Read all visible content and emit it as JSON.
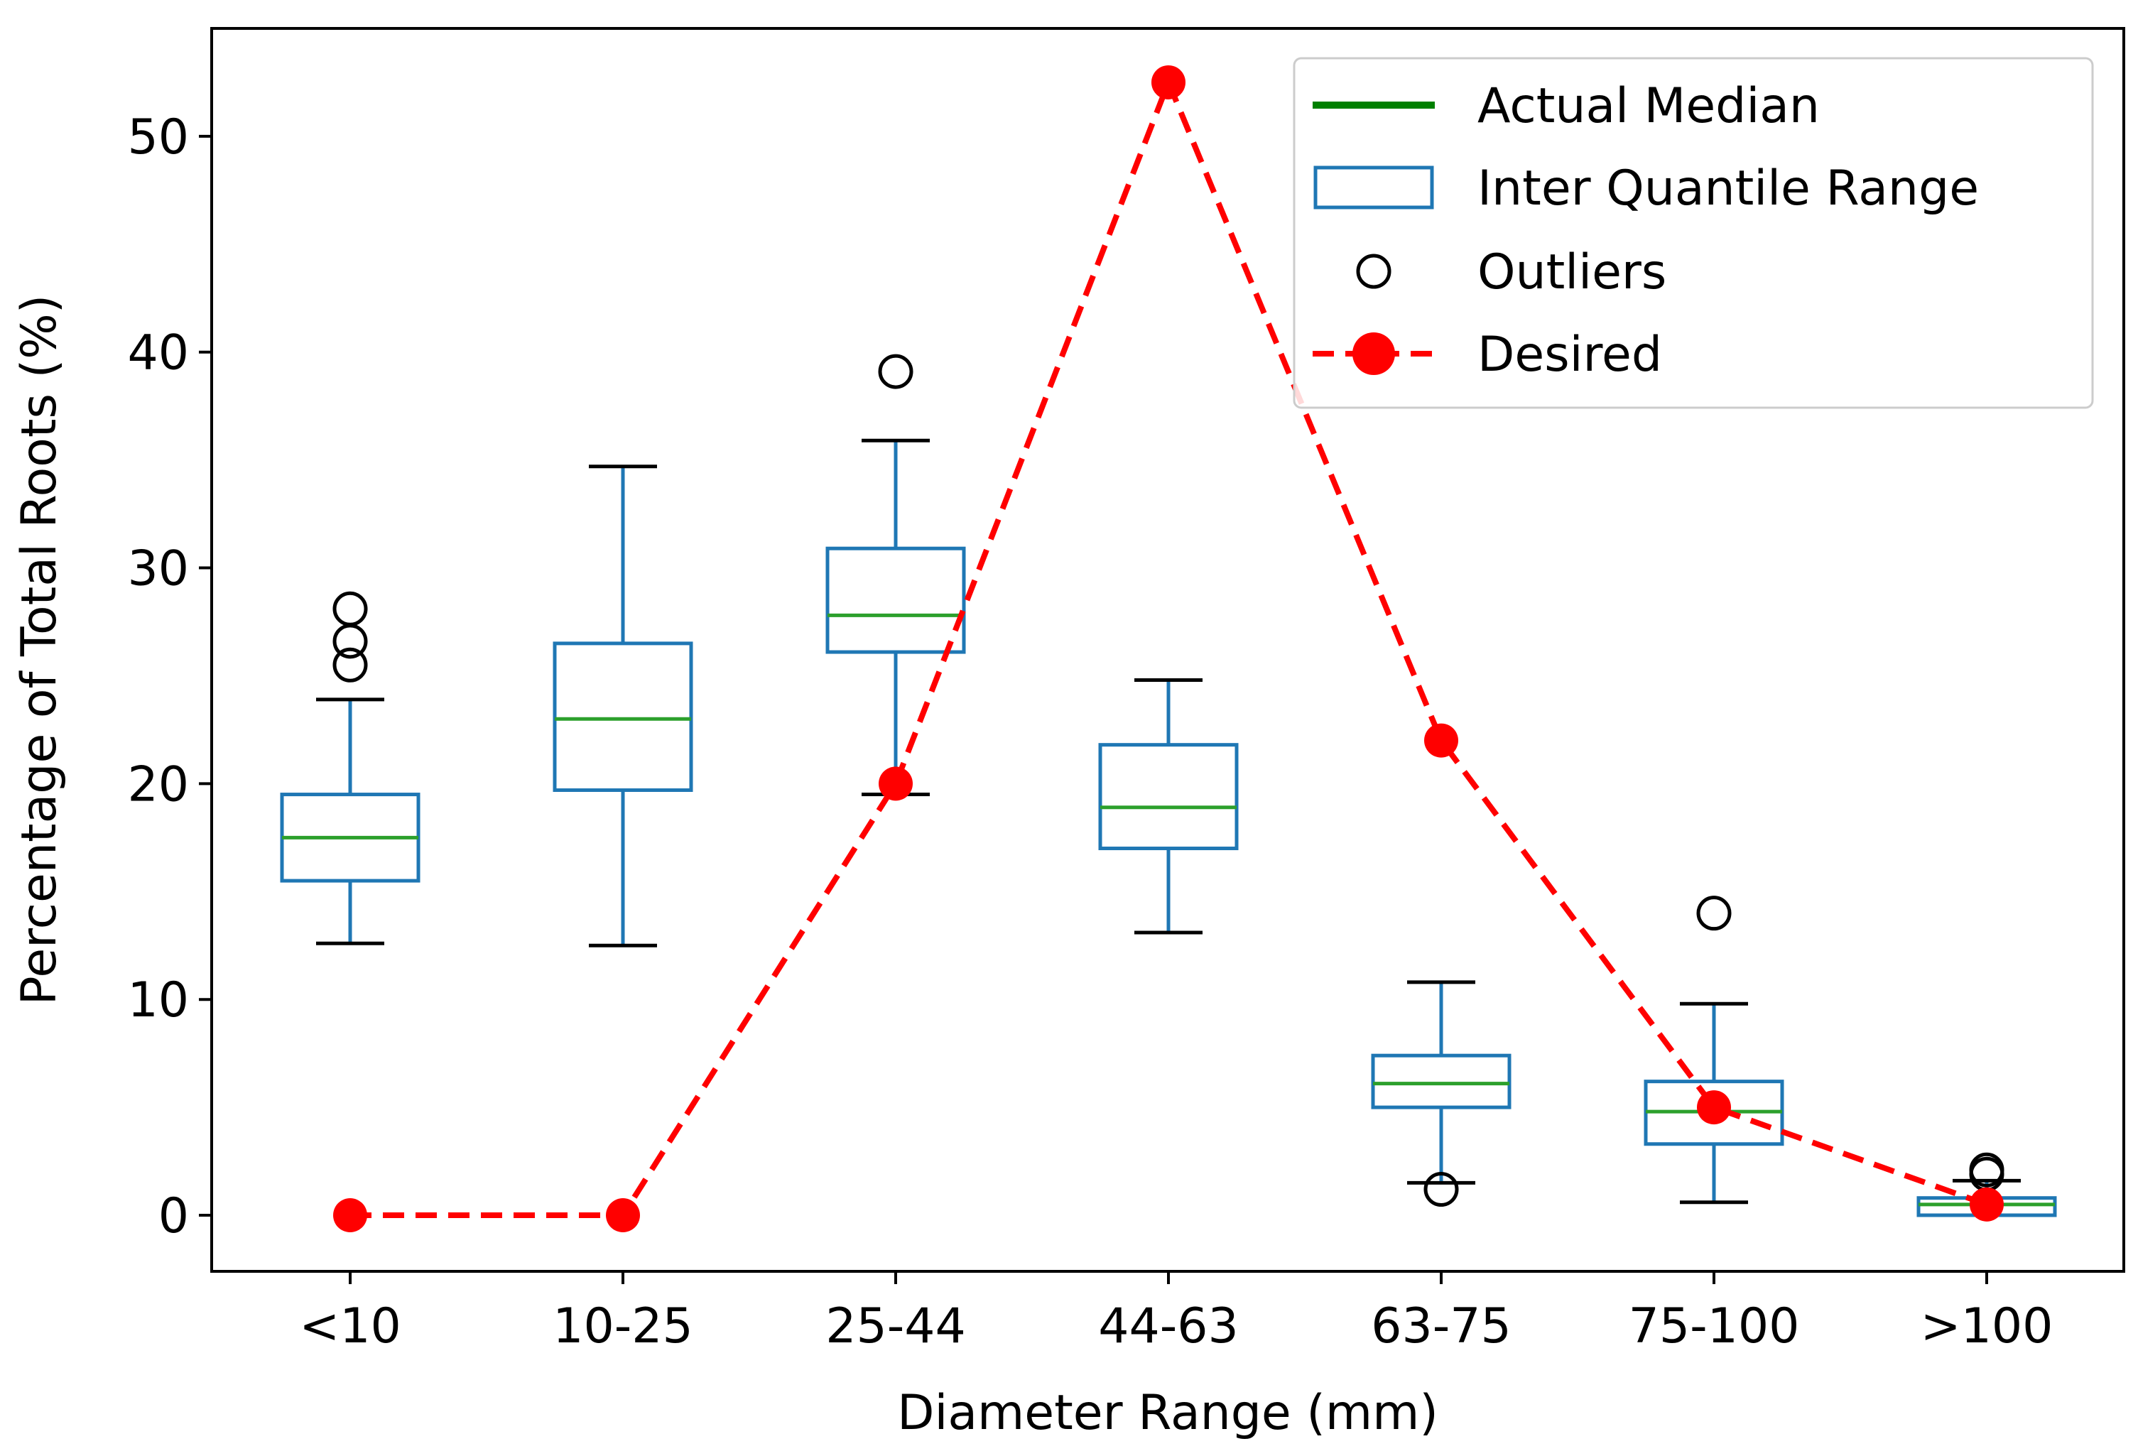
{
  "chart_data": {
    "type": "box",
    "xlabel": "Diameter Range (mm)",
    "ylabel": "Percentage of Total Roots (%)",
    "ylim": [
      -2.6,
      55
    ],
    "yticks": [
      0,
      10,
      20,
      30,
      40,
      50
    ],
    "categories": [
      "<10",
      "10-25",
      "25-44",
      "44-63",
      "63-75",
      "75-100",
      ">100"
    ],
    "boxes": [
      {
        "category": "<10",
        "whisker_low": 12.6,
        "q1": 15.5,
        "median": 17.5,
        "q3": 19.5,
        "whisker_high": 23.9,
        "outliers": [
          25.5,
          26.6,
          28.1
        ]
      },
      {
        "category": "10-25",
        "whisker_low": 12.5,
        "q1": 19.7,
        "median": 23.0,
        "q3": 26.5,
        "whisker_high": 34.7,
        "outliers": []
      },
      {
        "category": "25-44",
        "whisker_low": 19.5,
        "q1": 26.1,
        "median": 27.8,
        "q3": 30.9,
        "whisker_high": 35.9,
        "outliers": [
          39.1
        ]
      },
      {
        "category": "44-63",
        "whisker_low": 13.1,
        "q1": 17.0,
        "median": 18.9,
        "q3": 21.8,
        "whisker_high": 24.8,
        "outliers": []
      },
      {
        "category": "63-75",
        "whisker_low": 1.5,
        "q1": 5.0,
        "median": 6.1,
        "q3": 7.4,
        "whisker_high": 10.8,
        "outliers": [
          1.2
        ]
      },
      {
        "category": "75-100",
        "whisker_low": 0.6,
        "q1": 3.3,
        "median": 4.8,
        "q3": 6.2,
        "whisker_high": 9.8,
        "outliers": [
          14.0
        ]
      },
      {
        "category": ">100",
        "whisker_low": 0.0,
        "q1": 0.0,
        "median": 0.5,
        "q3": 0.8,
        "whisker_high": 1.6,
        "outliers": [
          1.9,
          2.1
        ]
      }
    ],
    "desired": {
      "name": "Desired",
      "values": [
        0,
        0,
        20,
        52.5,
        22,
        5,
        0.5
      ]
    },
    "legend": {
      "position": "upper-right",
      "entries": [
        "Actual Median",
        "Inter Quantile Range",
        "Outliers",
        "Desired"
      ]
    },
    "colors": {
      "box": "#1f77b4",
      "median": "#2ca02c",
      "legend_median": "#008000",
      "desired": "#ff0000",
      "outlier": "#000000",
      "axes": "#000000"
    }
  }
}
